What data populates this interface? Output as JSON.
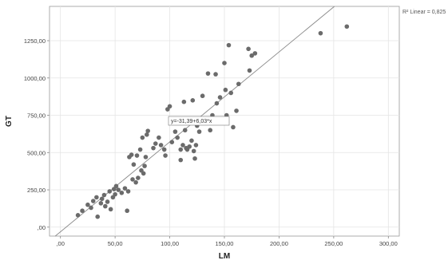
{
  "chart_data": {
    "type": "scatter",
    "xlabel": "LM",
    "ylabel": "GT",
    "xlim": [
      -10,
      310
    ],
    "ylim": [
      -60,
      1480
    ],
    "x_ticks": [
      0,
      50,
      100,
      150,
      200,
      250,
      300
    ],
    "x_tick_labels": [
      ",00",
      "50,00",
      "100,00",
      "150,00",
      "200,00",
      "250,00",
      "300,00"
    ],
    "y_ticks": [
      0,
      250,
      500,
      750,
      1000,
      1250
    ],
    "y_tick_labels": [
      ",00",
      "250,00",
      "500,00",
      "750,00",
      "1000,00",
      "1250,00"
    ],
    "grid": true,
    "fit_line": {
      "intercept": -31.39,
      "slope": 6.03,
      "label": "y=-31,39+6,03*x"
    },
    "r2_label": "R² Linear = 0,825",
    "point_color": "#6b6b6b",
    "points": [
      [
        16,
        80
      ],
      [
        20,
        110
      ],
      [
        25,
        150
      ],
      [
        28,
        130
      ],
      [
        30,
        175
      ],
      [
        33,
        200
      ],
      [
        34,
        70
      ],
      [
        37,
        160
      ],
      [
        38,
        190
      ],
      [
        40,
        215
      ],
      [
        41,
        140
      ],
      [
        43,
        170
      ],
      [
        45,
        240
      ],
      [
        46,
        120
      ],
      [
        48,
        200
      ],
      [
        49,
        255
      ],
      [
        50,
        220
      ],
      [
        51,
        275
      ],
      [
        53,
        250
      ],
      [
        56,
        230
      ],
      [
        59,
        260
      ],
      [
        61,
        110
      ],
      [
        62,
        240
      ],
      [
        63,
        470
      ],
      [
        65,
        485
      ],
      [
        66,
        320
      ],
      [
        67,
        420
      ],
      [
        69,
        300
      ],
      [
        70,
        480
      ],
      [
        71,
        330
      ],
      [
        73,
        520
      ],
      [
        74,
        380
      ],
      [
        75,
        600
      ],
      [
        76,
        360
      ],
      [
        77,
        410
      ],
      [
        78,
        470
      ],
      [
        79,
        620
      ],
      [
        80,
        645
      ],
      [
        85,
        530
      ],
      [
        87,
        560
      ],
      [
        90,
        600
      ],
      [
        92,
        550
      ],
      [
        95,
        520
      ],
      [
        96,
        480
      ],
      [
        98,
        790
      ],
      [
        100,
        810
      ],
      [
        102,
        570
      ],
      [
        105,
        640
      ],
      [
        107,
        600
      ],
      [
        110,
        520
      ],
      [
        110,
        450
      ],
      [
        112,
        550
      ],
      [
        113,
        840
      ],
      [
        114,
        650
      ],
      [
        115,
        530
      ],
      [
        116,
        520
      ],
      [
        118,
        540
      ],
      [
        120,
        580
      ],
      [
        121,
        850
      ],
      [
        122,
        510
      ],
      [
        123,
        460
      ],
      [
        124,
        550
      ],
      [
        125,
        680
      ],
      [
        127,
        640
      ],
      [
        130,
        880
      ],
      [
        133,
        720
      ],
      [
        135,
        1030
      ],
      [
        137,
        650
      ],
      [
        139,
        750
      ],
      [
        142,
        1025
      ],
      [
        143,
        830
      ],
      [
        146,
        870
      ],
      [
        150,
        1100
      ],
      [
        151,
        920
      ],
      [
        152,
        750
      ],
      [
        154,
        1220
      ],
      [
        156,
        900
      ],
      [
        158,
        670
      ],
      [
        161,
        780
      ],
      [
        163,
        960
      ],
      [
        172,
        1195
      ],
      [
        173,
        1050
      ],
      [
        175,
        1150
      ],
      [
        178,
        1165
      ],
      [
        238,
        1300
      ],
      [
        262,
        1345
      ]
    ]
  }
}
